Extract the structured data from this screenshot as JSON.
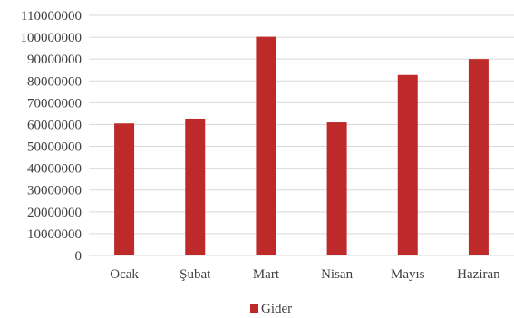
{
  "chart_data": {
    "type": "bar",
    "categories": [
      "Ocak",
      "Şubat",
      "Mart",
      "Nisan",
      "Mayıs",
      "Haziran"
    ],
    "series": [
      {
        "name": "Gider",
        "values": [
          60500000,
          62700000,
          100200000,
          61000000,
          82700000,
          90000000
        ],
        "color": "#be2a2a"
      }
    ],
    "ylim": [
      0,
      110000000
    ],
    "yticks": [
      "0",
      "10000000",
      "20000000",
      "30000000",
      "40000000",
      "50000000",
      "60000000",
      "70000000",
      "80000000",
      "90000000",
      "100000000",
      "110000000"
    ],
    "grid": true,
    "legend": "bottom-center",
    "gridline_color": "#d9d9d9"
  }
}
